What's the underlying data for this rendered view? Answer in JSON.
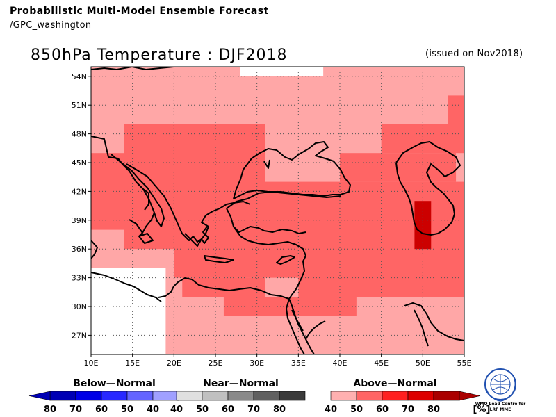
{
  "header": {
    "title": "Probabilistic Multi-Model Ensemble Forecast",
    "subtitle": "/GPC_washington"
  },
  "map": {
    "title": "850hPa Temperature : DJF2018",
    "issued": "(issued on Nov2018)",
    "lon_range": [
      10,
      55
    ],
    "lat_range": [
      25,
      55
    ],
    "lon_ticks": [
      "10E",
      "15E",
      "20E",
      "25E",
      "30E",
      "35E",
      "40E",
      "45E",
      "50E",
      "55E"
    ],
    "lat_ticks": [
      "27N",
      "30N",
      "33N",
      "36N",
      "39N",
      "42N",
      "45N",
      "48N",
      "51N",
      "54N"
    ],
    "colors": {
      "white": "#ffffff",
      "near40": "#dcdcdc",
      "above40": "#ffa7a7",
      "above50": "#ff6565",
      "above60": "#ff2020",
      "above70": "#cc0000"
    },
    "cells": [
      {
        "lon": [
          10,
          60
        ],
        "lat": [
          25,
          60
        ],
        "c": "above40"
      },
      {
        "lon": [
          10,
          19
        ],
        "lat": [
          25,
          34
        ],
        "c": "white"
      },
      {
        "lon": [
          10,
          19
        ],
        "lat": [
          34,
          37.5
        ],
        "c": "above40"
      },
      {
        "lon": [
          19,
          28
        ],
        "lat": [
          55,
          60
        ],
        "c": "near40"
      },
      {
        "lon": [
          28,
          38
        ],
        "lat": [
          54,
          60
        ],
        "c": "white"
      },
      {
        "lon": [
          38,
          50
        ],
        "lat": [
          55,
          60
        ],
        "c": "white"
      },
      {
        "lon": [
          14,
          20
        ],
        "lat": [
          36,
          49
        ],
        "c": "above50"
      },
      {
        "lon": [
          10,
          14
        ],
        "lat": [
          38,
          46
        ],
        "c": "above50"
      },
      {
        "lon": [
          20,
          31
        ],
        "lat": [
          33,
          49
        ],
        "c": "above50"
      },
      {
        "lon": [
          31,
          35
        ],
        "lat": [
          33,
          43
        ],
        "c": "above50"
      },
      {
        "lon": [
          35,
          60
        ],
        "lat": [
          31,
          43
        ],
        "c": "above50"
      },
      {
        "lon": [
          40,
          54
        ],
        "lat": [
          43,
          46
        ],
        "c": "above50"
      },
      {
        "lon": [
          45,
          60
        ],
        "lat": [
          46,
          49
        ],
        "c": "above50"
      },
      {
        "lon": [
          53,
          60
        ],
        "lat": [
          49,
          52
        ],
        "c": "above50"
      },
      {
        "lon": [
          21,
          31
        ],
        "lat": [
          31,
          33
        ],
        "c": "above50"
      },
      {
        "lon": [
          26,
          42
        ],
        "lat": [
          29,
          31
        ],
        "c": "above50"
      },
      {
        "lon": [
          49,
          51
        ],
        "lat": [
          36,
          41
        ],
        "c": "above70"
      }
    ],
    "legend": {
      "below": {
        "title": "Below—Normal",
        "ticks": [
          "80",
          "70",
          "60",
          "50",
          "40"
        ],
        "colors": [
          "#0000b4",
          "#0000e6",
          "#2828ff",
          "#6464ff",
          "#a0a0ff"
        ]
      },
      "near": {
        "title": "Near—Normal",
        "ticks": [
          "40",
          "50",
          "60",
          "70",
          "80"
        ],
        "colors": [
          "#e0e0e0",
          "#c0c0c0",
          "#8a8a8a",
          "#606060",
          "#3a3a3a"
        ]
      },
      "above": {
        "title": "Above—Normal",
        "ticks": [
          "40",
          "50",
          "60",
          "70",
          "80"
        ],
        "colors": [
          "#ffb0b0",
          "#ff6565",
          "#ff2020",
          "#dd0000",
          "#aa0000"
        ],
        "unit": "[%]"
      }
    },
    "logo_text": [
      "WMO Lead Centre for",
      "LRF MME"
    ]
  }
}
